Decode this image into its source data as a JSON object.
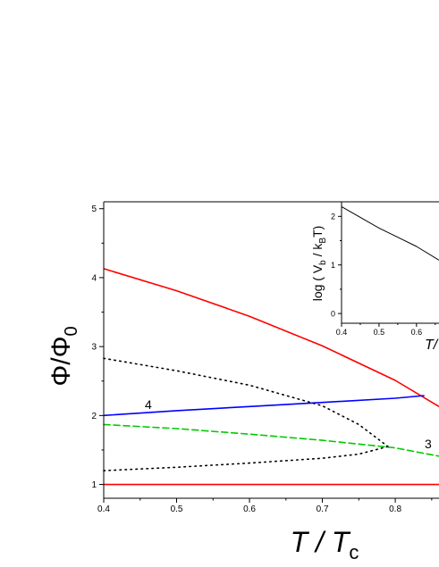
{
  "chart_data": [
    {
      "type": "line",
      "xlabel": "T / T",
      "xlabel_parts": {
        "main": "T / T",
        "sub": "c"
      },
      "ylabel": "Φ/Φ",
      "ylabel_parts": {
        "main": "Φ/Φ",
        "sub": "0"
      },
      "xlim": [
        0.4,
        0.86
      ],
      "ylim": [
        0.8,
        5.1
      ],
      "xticks": [
        "0.4",
        "0.5",
        "0.6",
        "0.7",
        "0.8"
      ],
      "yticks": [
        "1",
        "2",
        "3",
        "4",
        "5"
      ],
      "grid": false,
      "annotations": [
        "4",
        "3"
      ],
      "series": [
        {
          "color": "#ff0000",
          "style": "solid",
          "x": [
            0.4,
            0.5,
            0.6,
            0.7,
            0.8,
            0.86
          ],
          "y": [
            4.13,
            3.81,
            3.44,
            3.01,
            2.51,
            2.13
          ]
        },
        {
          "color": "#ff0000",
          "style": "solid",
          "x": [
            0.4,
            0.86
          ],
          "y": [
            1.0,
            1.0
          ]
        },
        {
          "color": "#0000ff",
          "style": "solid",
          "x": [
            0.4,
            0.5,
            0.6,
            0.7,
            0.8,
            0.84
          ],
          "y": [
            2.0,
            2.07,
            2.13,
            2.19,
            2.25,
            2.29
          ]
        },
        {
          "color": "#00cc00",
          "style": "dashed",
          "x": [
            0.4,
            0.5,
            0.6,
            0.7,
            0.8,
            0.86
          ],
          "y": [
            1.87,
            1.81,
            1.73,
            1.64,
            1.53,
            1.41
          ]
        },
        {
          "color": "#000000",
          "style": "dotted",
          "x": [
            0.4,
            0.5,
            0.6,
            0.7,
            0.75,
            0.79
          ],
          "y": [
            2.83,
            2.65,
            2.44,
            2.14,
            1.87,
            1.55
          ]
        },
        {
          "color": "#000000",
          "style": "dotted",
          "x": [
            0.4,
            0.5,
            0.6,
            0.7,
            0.75,
            0.79
          ],
          "y": [
            1.2,
            1.25,
            1.31,
            1.38,
            1.44,
            1.55
          ]
        }
      ]
    },
    {
      "type": "line",
      "xlabel": "T/",
      "ylabel": "log ( V  / k T)",
      "ylabel_parts": {
        "p1": "log ( V",
        "s1": "b",
        "p2": " / k",
        "s2": "B",
        "p3": "T)"
      },
      "xlim": [
        0.4,
        0.66
      ],
      "ylim": [
        -0.2,
        2.3
      ],
      "xticks": [
        "0.4",
        "0.5",
        "0.6"
      ],
      "yticks": [
        "0",
        "1",
        "2"
      ],
      "grid": false,
      "series": [
        {
          "color": "#000000",
          "style": "solid",
          "x": [
            0.4,
            0.45,
            0.5,
            0.55,
            0.6,
            0.66
          ],
          "y": [
            2.2,
            1.98,
            1.76,
            1.57,
            1.38,
            1.1
          ]
        }
      ]
    }
  ]
}
